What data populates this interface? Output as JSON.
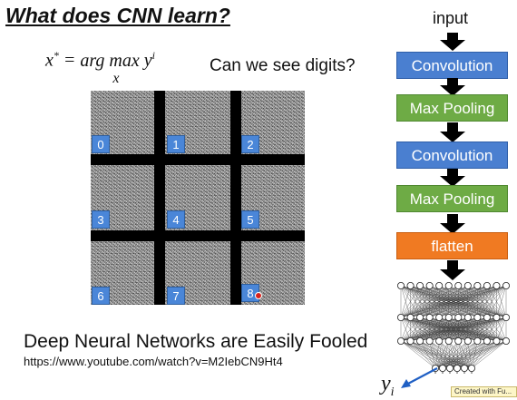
{
  "title": "What does CNN learn?",
  "formula": {
    "lhs": "x",
    "lhs_sup": "*",
    "eq": " = ",
    "argmax": "arg max",
    "argmax_sub": "x",
    "rhs": "y",
    "rhs_sup": "i"
  },
  "question": "Can we see digits?",
  "grid_labels": [
    "0",
    "1",
    "2",
    "3",
    "4",
    "5",
    "6",
    "7",
    "8"
  ],
  "caption": "Deep Neural Networks are Easily Fooled",
  "url": "https://www.youtube.com/watch?v=M2IebCN9Ht4",
  "pipeline": {
    "input_label": "input",
    "blocks": [
      {
        "label": "Convolution",
        "kind": "conv"
      },
      {
        "label": "Max Pooling",
        "kind": "pool"
      },
      {
        "label": "Convolution",
        "kind": "conv"
      },
      {
        "label": "Max Pooling",
        "kind": "pool"
      },
      {
        "label": "flatten",
        "kind": "flat"
      }
    ],
    "output_label": "y",
    "output_sub": "i"
  },
  "watermark": "Created with Fu...",
  "colors": {
    "conv": "#4a7fd0",
    "pool": "#6eab45",
    "flatten": "#f07a22",
    "cell_label": "#4a86d8",
    "arrow": "#1f5fc4"
  }
}
